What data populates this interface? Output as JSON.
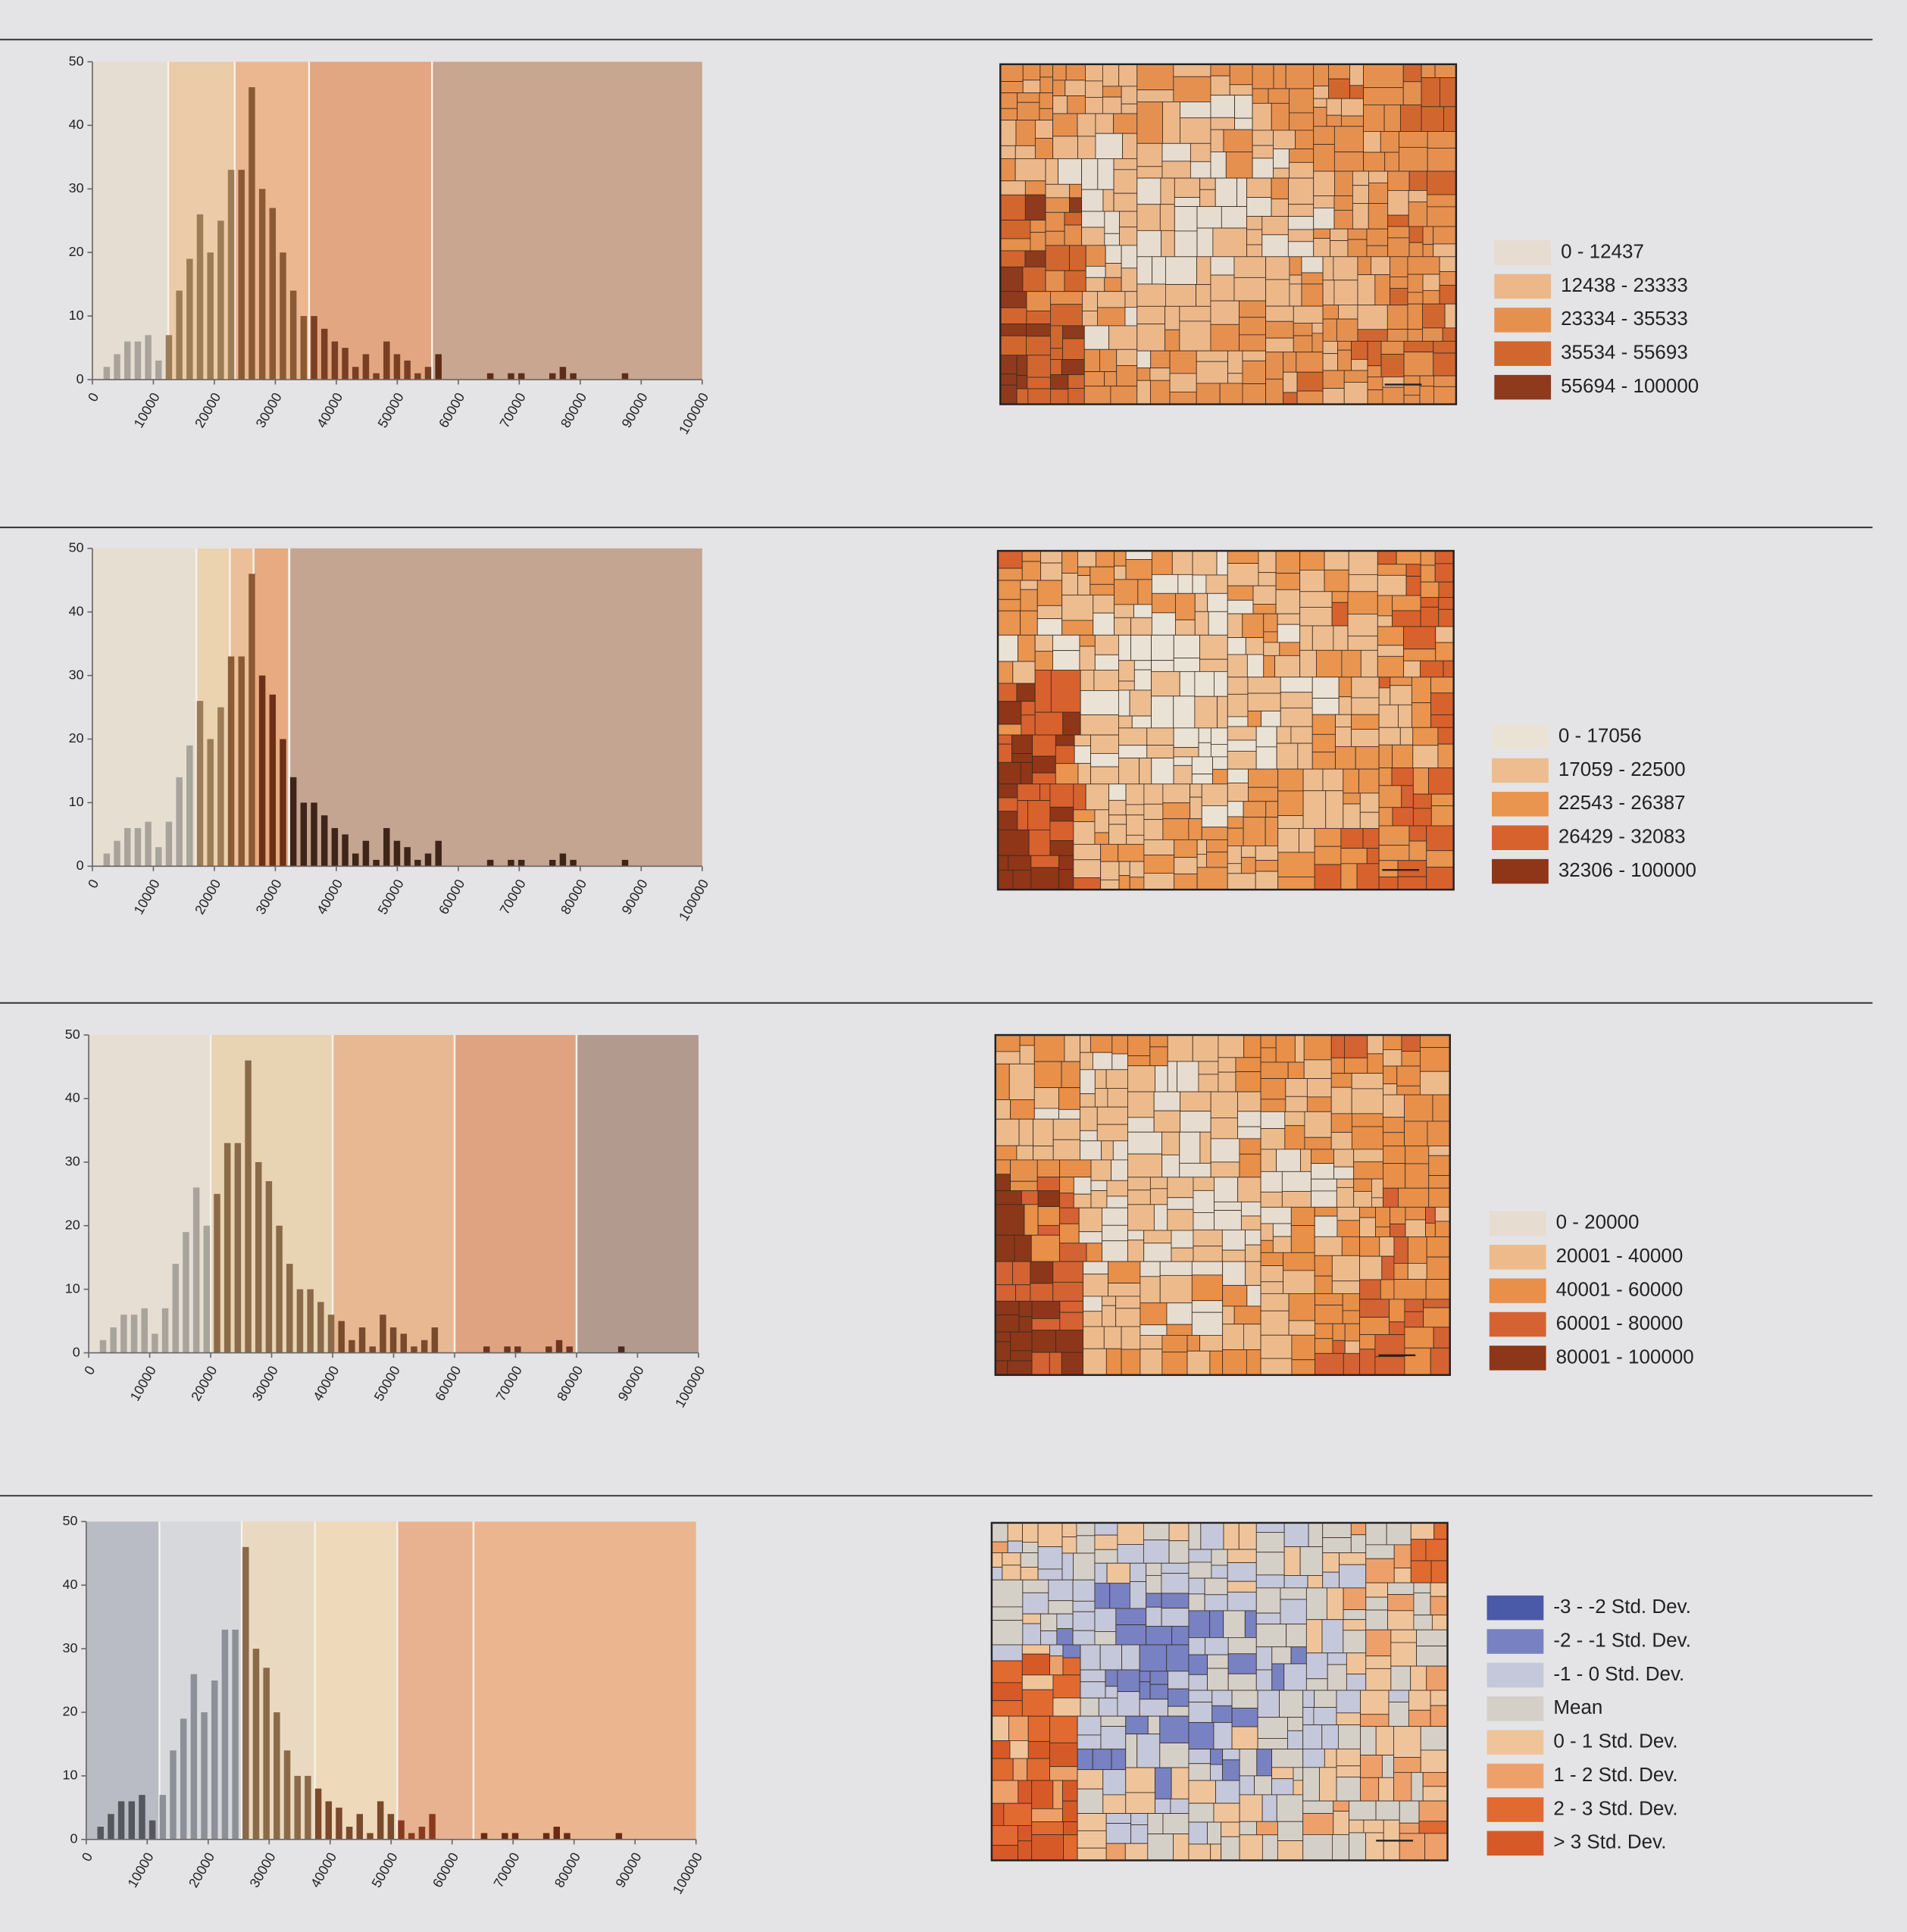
{
  "chart_data": [
    {
      "type": "histogram",
      "bins": [
        1500,
        3200,
        4900,
        6600,
        8300,
        10000,
        11700,
        13400,
        15100,
        16800,
        18500,
        20200,
        21900,
        23600,
        25300,
        27000,
        28700,
        30400,
        32100,
        33800,
        35500,
        37200,
        38900,
        40600,
        42300,
        44000,
        45700,
        47400,
        49100,
        50800,
        52500,
        54200,
        55900,
        57600,
        59300,
        61000,
        62700,
        64400,
        66100,
        67800,
        69500,
        71200,
        72900,
        74600,
        76300,
        78000,
        79700,
        81400,
        83100,
        84800,
        86500,
        88200,
        89900,
        91600,
        93300,
        95000,
        96700,
        98400
      ],
      "values": [
        2,
        4,
        6,
        6,
        7,
        3,
        7,
        14,
        19,
        26,
        20,
        25,
        33,
        33,
        46,
        30,
        27,
        20,
        14,
        10,
        10,
        8,
        6,
        5,
        2,
        4,
        1,
        6,
        4,
        3,
        1,
        2,
        4,
        0,
        0,
        0,
        0,
        1,
        0,
        1,
        1,
        0,
        0,
        1,
        2,
        1,
        0,
        0,
        0,
        0,
        1,
        0,
        0,
        0,
        0,
        0,
        0
      ],
      "xlim": [
        0,
        100000
      ],
      "ylim": [
        0,
        50
      ],
      "xticks": [
        0,
        10000,
        20000,
        30000,
        40000,
        50000,
        60000,
        70000,
        80000,
        90000,
        100000
      ],
      "yticks": [
        0,
        10,
        20,
        30,
        40,
        50
      ],
      "classes": [
        {
          "name": "0 - 12437",
          "range": [
            0,
            12437
          ],
          "color": "#e6dccf",
          "band": "#e5ddd2",
          "bar": "#a9a49b"
        },
        {
          "name": "12438 - 23333",
          "range": [
            12438,
            23333
          ],
          "color": "#ecb88a",
          "band": "#ebcba8",
          "bar": "#9c7b57"
        },
        {
          "name": "23334 - 35533",
          "range": [
            23334,
            35533
          ],
          "color": "#e6904f",
          "band": "#ebb791",
          "bar": "#8a5a35"
        },
        {
          "name": "35534 - 55693",
          "range": [
            35534,
            55693
          ],
          "color": "#d2662f",
          "band": "#e2a683",
          "bar": "#7a3f22"
        },
        {
          "name": "55694 - 100000",
          "range": [
            55694,
            100000
          ],
          "color": "#8f3a1d",
          "band": "#c9a690",
          "bar": "#5e2d18"
        }
      ]
    },
    {
      "type": "histogram",
      "bins": [
        1500,
        3200,
        4900,
        6600,
        8300,
        10000,
        11700,
        13400,
        15100,
        16800,
        18500,
        20200,
        21900,
        23600,
        25300,
        27000,
        28700,
        30400,
        32100,
        33800,
        35500,
        37200,
        38900,
        40600,
        42300,
        44000,
        45700,
        47400,
        49100,
        50800,
        52500,
        54200,
        55900,
        57600,
        59300,
        61000,
        62700,
        64400,
        66100,
        67800,
        69500,
        71200,
        72900,
        74600,
        76300,
        78000,
        79700,
        81400,
        83100,
        84800,
        86500,
        88200,
        89900,
        91600,
        93300,
        95000,
        96700,
        98400
      ],
      "values": [
        2,
        4,
        6,
        6,
        7,
        3,
        7,
        14,
        19,
        26,
        20,
        25,
        33,
        33,
        46,
        30,
        27,
        20,
        14,
        10,
        10,
        8,
        6,
        5,
        2,
        4,
        1,
        6,
        4,
        3,
        1,
        2,
        4,
        0,
        0,
        0,
        0,
        1,
        0,
        1,
        1,
        0,
        0,
        1,
        2,
        1,
        0,
        0,
        0,
        0,
        1,
        0,
        0,
        0,
        0,
        0,
        0
      ],
      "xlim": [
        0,
        100000
      ],
      "ylim": [
        0,
        50
      ],
      "xticks": [
        0,
        10000,
        20000,
        30000,
        40000,
        50000,
        60000,
        70000,
        80000,
        90000,
        100000
      ],
      "yticks": [
        0,
        10,
        20,
        30,
        40,
        50
      ],
      "classes": [
        {
          "name": "0 - 17056",
          "range": [
            0,
            17056
          ],
          "color": "#ebe2d6",
          "band": "#e7ded2",
          "bar": "#a9a49b"
        },
        {
          "name": "17059 - 22500",
          "range": [
            17059,
            22500
          ],
          "color": "#edbd8f",
          "band": "#ebd3b0",
          "bar": "#9c7b57"
        },
        {
          "name": "22543 - 26387",
          "range": [
            22543,
            26387
          ],
          "color": "#e9944f",
          "band": "#ebc098",
          "bar": "#8a5a35"
        },
        {
          "name": "26429 - 32083",
          "range": [
            26429,
            32083
          ],
          "color": "#d7622d",
          "band": "#e8aa80",
          "bar": "#6b3015"
        },
        {
          "name": "32306 - 100000",
          "range": [
            32306,
            100000
          ],
          "color": "#8f3518",
          "band": "#c4a592",
          "bar": "#3f2418"
        }
      ]
    },
    {
      "type": "histogram",
      "bins": [
        1500,
        3200,
        4900,
        6600,
        8300,
        10000,
        11700,
        13400,
        15100,
        16800,
        18500,
        20200,
        21900,
        23600,
        25300,
        27000,
        28700,
        30400,
        32100,
        33800,
        35500,
        37200,
        38900,
        40600,
        42300,
        44000,
        45700,
        47400,
        49100,
        50800,
        52500,
        54200,
        55900,
        57600,
        59300,
        61000,
        62700,
        64400,
        66100,
        67800,
        69500,
        71200,
        72900,
        74600,
        76300,
        78000,
        79700,
        81400,
        83100,
        84800,
        86500,
        88200,
        89900,
        91600,
        93300,
        95000,
        96700,
        98400
      ],
      "values": [
        2,
        4,
        6,
        6,
        7,
        3,
        7,
        14,
        19,
        26,
        20,
        25,
        33,
        33,
        46,
        30,
        27,
        20,
        14,
        10,
        10,
        8,
        6,
        5,
        2,
        4,
        1,
        6,
        4,
        3,
        1,
        2,
        4,
        0,
        0,
        0,
        0,
        1,
        0,
        1,
        1,
        0,
        0,
        1,
        2,
        1,
        0,
        0,
        0,
        0,
        1,
        0,
        0,
        0,
        0,
        0,
        0
      ],
      "xlim": [
        0,
        100000
      ],
      "ylim": [
        0,
        50
      ],
      "xticks": [
        0,
        10000,
        20000,
        30000,
        40000,
        50000,
        60000,
        70000,
        80000,
        90000,
        100000
      ],
      "yticks": [
        0,
        10,
        20,
        30,
        40,
        50
      ],
      "classes": [
        {
          "name": "0 - 20000",
          "range": [
            0,
            20000
          ],
          "color": "#e6dccf",
          "band": "#e6ddd3",
          "bar": "#a9a49b"
        },
        {
          "name": "20001 - 40000",
          "range": [
            20001,
            40000
          ],
          "color": "#edbb8b",
          "band": "#e8d4b3",
          "bar": "#8a6a48"
        },
        {
          "name": "40001 - 60000",
          "range": [
            40001,
            60000
          ],
          "color": "#e88f49",
          "band": "#e8b893",
          "bar": "#7a4a2c"
        },
        {
          "name": "60001 - 80000",
          "range": [
            60001,
            80000
          ],
          "color": "#d46233",
          "band": "#e0a382",
          "bar": "#6b3520"
        },
        {
          "name": "80001 - 100000",
          "range": [
            80001,
            100000
          ],
          "color": "#8c3719",
          "band": "#b39a8f",
          "bar": "#4a2a20"
        }
      ]
    },
    {
      "type": "histogram",
      "bins": [
        1500,
        3200,
        4900,
        6600,
        8300,
        10000,
        11700,
        13400,
        15100,
        16800,
        18500,
        20200,
        21900,
        23600,
        25300,
        27000,
        28700,
        30400,
        32100,
        33800,
        35500,
        37200,
        38900,
        40600,
        42300,
        44000,
        45700,
        47400,
        49100,
        50800,
        52500,
        54200,
        55900,
        57600,
        59300,
        61000,
        62700,
        64400,
        66100,
        67800,
        69500,
        71200,
        72900,
        74600,
        76300,
        78000,
        79700,
        81400,
        83100,
        84800,
        86500,
        88200,
        89900,
        91600,
        93300,
        95000,
        96700,
        98400
      ],
      "values": [
        2,
        4,
        6,
        6,
        7,
        3,
        7,
        14,
        19,
        26,
        20,
        25,
        33,
        33,
        46,
        30,
        27,
        20,
        14,
        10,
        10,
        8,
        6,
        5,
        2,
        4,
        1,
        6,
        4,
        3,
        1,
        2,
        4,
        0,
        0,
        0,
        0,
        1,
        0,
        1,
        1,
        0,
        0,
        1,
        2,
        1,
        0,
        0,
        0,
        0,
        1,
        0,
        0,
        0,
        0,
        0,
        0
      ],
      "xlim": [
        0,
        100000
      ],
      "ylim": [
        0,
        50
      ],
      "xticks": [
        0,
        10000,
        20000,
        30000,
        40000,
        50000,
        60000,
        70000,
        80000,
        90000,
        100000
      ],
      "yticks": [
        0,
        10,
        20,
        30,
        40,
        50
      ],
      "classes": [
        {
          "name": "-3 - -2 Std. Dev.",
          "range": null,
          "color": "#4a5aa8",
          "band": "#9aa0b8",
          "bar": "#3a3c48"
        },
        {
          "name": "-2 - -1 Std. Dev.",
          "range": [
            0,
            12000
          ],
          "color": "#7882c2",
          "band": "#b9bcc4",
          "bar": "#55575f"
        },
        {
          "name": "-1 - 0 Std. Dev.",
          "range": [
            12000,
            25500
          ],
          "color": "#c4c8da",
          "band": "#d7d8dc",
          "bar": "#8e9098"
        },
        {
          "name": "Mean",
          "range": null,
          "color": "#d4d0c8",
          "band": "#e0ddd6",
          "bar": "#a09a90"
        },
        {
          "name": "0 - 1 Std. Dev.",
          "range": [
            25500,
            37500
          ],
          "color": "#f0c49a",
          "band": "#e9d9c0",
          "bar": "#8a6a48"
        },
        {
          "name": "1 - 2 Std. Dev.",
          "range": [
            37500,
            51000
          ],
          "color": "#eea06a",
          "band": "#eed9ba",
          "bar": "#7a4a2c"
        },
        {
          "name": "2 - 3 Std. Dev.",
          "range": [
            51000,
            63500
          ],
          "color": "#e06a30",
          "band": "#e8b291",
          "bar": "#8a3a1c"
        },
        {
          "name": "> 3 Std. Dev.",
          "range": [
            63500,
            100000
          ],
          "color": "#d65a28",
          "band": "#ebb68f",
          "bar": "#6a2a14"
        }
      ]
    }
  ]
}
